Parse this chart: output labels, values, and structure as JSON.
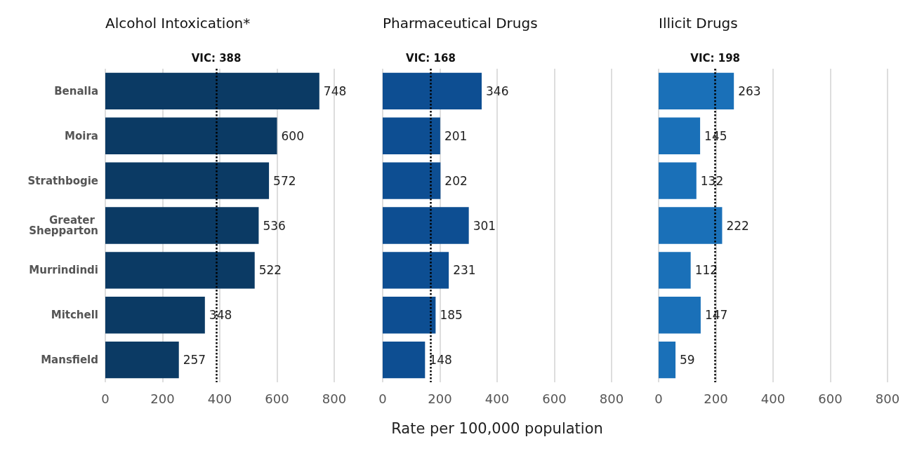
{
  "chart_data": [
    {
      "type": "bar",
      "orientation": "horizontal",
      "title": "Alcohol Intoxication*",
      "categories": [
        "Benalla",
        "Moira",
        "Strathbogie",
        "Greater Shepparton",
        "Murrindindi",
        "Mitchell",
        "Mansfield"
      ],
      "values": [
        748,
        600,
        572,
        536,
        522,
        348,
        257
      ],
      "color": "#0b3a64",
      "xlim": [
        0,
        800
      ],
      "xticks": [
        0,
        200,
        400,
        600,
        800
      ],
      "grid": "x",
      "data_labels": true,
      "ref_lines": [
        {
          "axis": "x",
          "value": 388,
          "label": "VIC: 388",
          "line_style": "dotted",
          "color": "#000000"
        }
      ]
    },
    {
      "type": "bar",
      "orientation": "horizontal",
      "title": "Pharmaceutical Drugs",
      "xlabel": "Rate per 100,000 population",
      "categories": [
        "Benalla",
        "Moira",
        "Strathbogie",
        "Greater Shepparton",
        "Murrindindi",
        "Mitchell",
        "Mansfield"
      ],
      "values": [
        346,
        201,
        202,
        301,
        231,
        185,
        148
      ],
      "color": "#0d4e92",
      "xlim": [
        0,
        800
      ],
      "xticks": [
        0,
        200,
        400,
        600,
        800
      ],
      "grid": "x",
      "data_labels": true,
      "tick_labels": "x",
      "ref_lines": [
        {
          "axis": "x",
          "value": 168,
          "label": "VIC: 168",
          "line_style": "dotted",
          "color": "#000000"
        }
      ]
    },
    {
      "type": "bar",
      "orientation": "horizontal",
      "title": "Illicit Drugs",
      "categories": [
        "Benalla",
        "Moira",
        "Strathbogie",
        "Greater Shepparton",
        "Murrindindi",
        "Mitchell",
        "Mansfield"
      ],
      "values": [
        263,
        145,
        132,
        222,
        112,
        147,
        59
      ],
      "color": "#1a70b8",
      "xlim": [
        0,
        800
      ],
      "xticks": [
        0,
        200,
        400,
        600,
        800
      ],
      "grid": "x",
      "data_labels": true,
      "tick_labels": "x",
      "ref_lines": [
        {
          "axis": "x",
          "value": 198,
          "label": "VIC: 198",
          "line_style": "dotted",
          "color": "#000000"
        }
      ]
    }
  ]
}
